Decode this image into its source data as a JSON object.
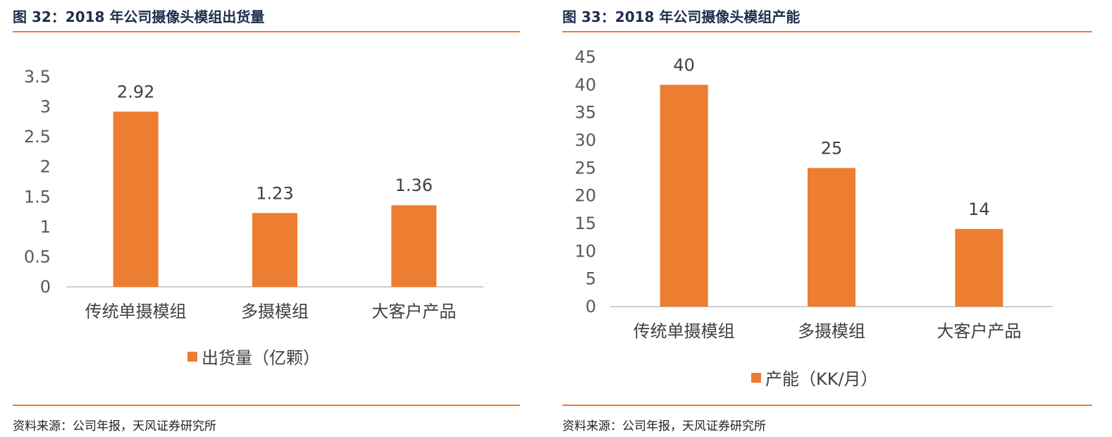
{
  "colors": {
    "bar": "#ed7d31",
    "rule": "#ed7d31",
    "axis": "#bfbfbf",
    "title": "#1f2d4d"
  },
  "left": {
    "title": "图 32：2018 年公司摄像头模组出货量",
    "source": "资料来源：公司年报，天风证券研究所",
    "legend_label": "出货量（亿颗）"
  },
  "right": {
    "title": "图 33：2018 年公司摄像头模组产能",
    "source": "资料来源：公司年报，天风证券研究所",
    "legend_label": "产能（KK/月）"
  },
  "chart_data": [
    {
      "type": "bar",
      "categories": [
        "传统单摄模组",
        "多摄模组",
        "大客户产品"
      ],
      "series": [
        {
          "name": "出货量（亿颗）",
          "values": [
            2.92,
            1.23,
            1.36
          ]
        }
      ],
      "data_labels": [
        "2.92",
        "1.23",
        "1.36"
      ],
      "ylim": [
        0,
        3.5
      ],
      "yticks": [
        0,
        0.5,
        1,
        1.5,
        2,
        2.5,
        3,
        3.5
      ],
      "ytick_labels": [
        "0",
        "0.5",
        "1",
        "1.5",
        "2",
        "2.5",
        "3",
        "3.5"
      ],
      "legend": "bottom",
      "grid": false
    },
    {
      "type": "bar",
      "categories": [
        "传统单摄模组",
        "多摄模组",
        "大客户产品"
      ],
      "series": [
        {
          "name": "产能（KK/月）",
          "values": [
            40,
            25,
            14
          ]
        }
      ],
      "data_labels": [
        "40",
        "25",
        "14"
      ],
      "ylim": [
        0,
        45
      ],
      "yticks": [
        0,
        5,
        10,
        15,
        20,
        25,
        30,
        35,
        40,
        45
      ],
      "ytick_labels": [
        "0",
        "5",
        "10",
        "15",
        "20",
        "25",
        "30",
        "35",
        "40",
        "45"
      ],
      "legend": "bottom",
      "grid": false
    }
  ]
}
